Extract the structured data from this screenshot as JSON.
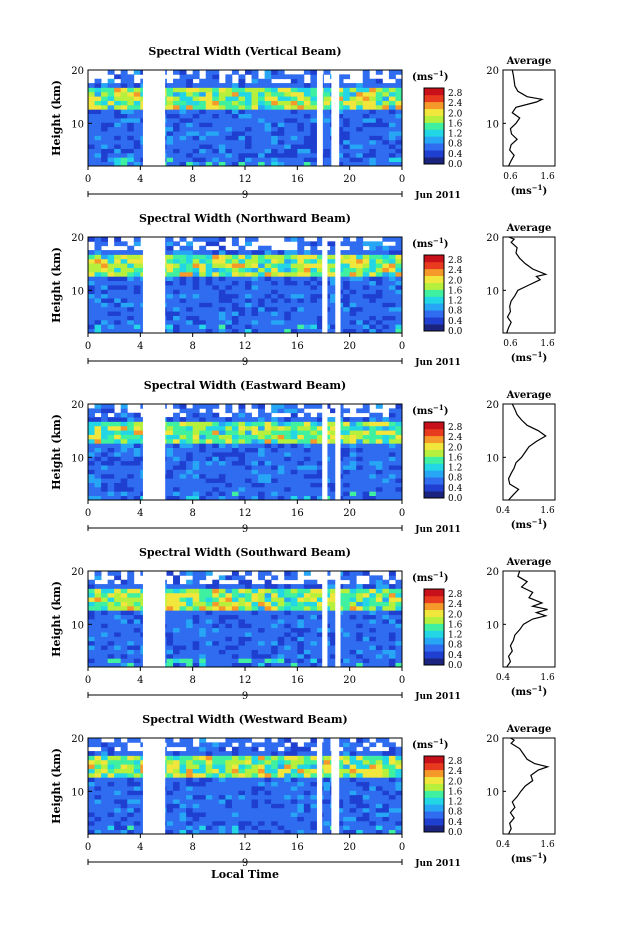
{
  "figure": {
    "x_axis_label": "Local Time",
    "date_label": "Jun 2011",
    "day_label": "9",
    "unit_label": "(ms",
    "unit_sup": "−1",
    "unit_close": ")",
    "average_title": "Average",
    "height_label": "Height (km)"
  },
  "chart_data": [
    {
      "type": "heatmap",
      "title": "Spectral Width (Vertical Beam)",
      "xlabel": "",
      "ylabel": "Height (km)",
      "x_ticks": [
        "0",
        "4",
        "8",
        "12",
        "16",
        "20",
        "0"
      ],
      "xlim": [
        0,
        24
      ],
      "ylim": [
        2,
        20
      ],
      "y_ticks": [
        "10",
        "20"
      ],
      "colorbar": {
        "label": "(ms⁻¹)",
        "ticks": [
          "0.0",
          "0.4",
          "0.8",
          "1.2",
          "1.6",
          "2.0",
          "2.4",
          "2.8"
        ],
        "range": [
          0,
          3.0
        ],
        "colors": [
          "#1a237e",
          "#1e3fd0",
          "#2f6cf0",
          "#26a6f5",
          "#22d6e6",
          "#3ff0a0",
          "#b6f03c",
          "#f0e63c",
          "#f59a2a",
          "#e83a1e",
          "#c8101a"
        ]
      },
      "gaps": [
        [
          4.2,
          5.9
        ],
        [
          17.5,
          17.95
        ],
        [
          18.6,
          19.2
        ]
      ],
      "average": {
        "title": "Average",
        "xlabel": "(ms⁻¹)",
        "x_ticks": [
          "0.6",
          "1.6"
        ],
        "xlim": [
          0.4,
          1.8
        ],
        "y_ticks": [
          "10",
          "20"
        ],
        "profile": [
          [
            0.55,
            2
          ],
          [
            0.62,
            3
          ],
          [
            0.7,
            4
          ],
          [
            0.58,
            5
          ],
          [
            0.62,
            6
          ],
          [
            0.78,
            7
          ],
          [
            0.63,
            8
          ],
          [
            0.6,
            9
          ],
          [
            0.75,
            10
          ],
          [
            0.85,
            11
          ],
          [
            0.65,
            12
          ],
          [
            0.75,
            13
          ],
          [
            1.3,
            14
          ],
          [
            1.45,
            14.5
          ],
          [
            1.05,
            15
          ],
          [
            0.8,
            16
          ],
          [
            0.72,
            17
          ],
          [
            0.7,
            18
          ],
          [
            0.68,
            19
          ],
          [
            0.65,
            20
          ]
        ]
      }
    },
    {
      "type": "heatmap",
      "title": "Spectral Width (Northward Beam)",
      "xlabel": "",
      "ylabel": "Height (km)",
      "x_ticks": [
        "0",
        "4",
        "8",
        "12",
        "16",
        "20",
        "0"
      ],
      "xlim": [
        0,
        24
      ],
      "ylim": [
        2,
        20
      ],
      "y_ticks": [
        "10",
        "20"
      ],
      "colorbar": {
        "label": "(ms⁻¹)",
        "ticks": [
          "0.0",
          "0.4",
          "0.8",
          "1.2",
          "1.6",
          "2.0",
          "2.4",
          "2.8"
        ],
        "range": [
          0,
          3.0
        ],
        "colors": [
          "#1a237e",
          "#1e3fd0",
          "#2f6cf0",
          "#26a6f5",
          "#22d6e6",
          "#3ff0a0",
          "#b6f03c",
          "#f0e63c",
          "#f59a2a",
          "#e83a1e",
          "#c8101a"
        ]
      },
      "gaps": [
        [
          4.2,
          5.9
        ],
        [
          17.9,
          18.3
        ],
        [
          18.9,
          19.3
        ]
      ],
      "average": {
        "title": "Average",
        "xlabel": "(ms⁻¹)",
        "x_ticks": [
          "0.6",
          "1.6"
        ],
        "xlim": [
          0.4,
          1.8
        ],
        "y_ticks": [
          "10",
          "20"
        ],
        "profile": [
          [
            0.5,
            2
          ],
          [
            0.55,
            3
          ],
          [
            0.62,
            4
          ],
          [
            0.52,
            5
          ],
          [
            0.6,
            6
          ],
          [
            0.58,
            7
          ],
          [
            0.62,
            8
          ],
          [
            0.72,
            9
          ],
          [
            0.8,
            10
          ],
          [
            1.1,
            11
          ],
          [
            1.4,
            12
          ],
          [
            1.3,
            12.6
          ],
          [
            1.55,
            13
          ],
          [
            1.2,
            14
          ],
          [
            1.0,
            15
          ],
          [
            0.85,
            16
          ],
          [
            0.75,
            17
          ],
          [
            0.78,
            18
          ],
          [
            0.62,
            19
          ],
          [
            0.7,
            19.6
          ],
          [
            0.55,
            20
          ]
        ]
      }
    },
    {
      "type": "heatmap",
      "title": "Spectral Width (Eastward Beam)",
      "xlabel": "",
      "ylabel": "Height (km)",
      "x_ticks": [
        "0",
        "4",
        "8",
        "12",
        "16",
        "20",
        "0"
      ],
      "xlim": [
        0,
        24
      ],
      "ylim": [
        2,
        20
      ],
      "y_ticks": [
        "10",
        "20"
      ],
      "colorbar": {
        "label": "(ms⁻¹)",
        "ticks": [
          "0.0",
          "0.4",
          "0.8",
          "1.2",
          "1.6",
          "2.0",
          "2.4",
          "2.8"
        ],
        "range": [
          0,
          3.0
        ],
        "colors": [
          "#1a237e",
          "#1e3fd0",
          "#2f6cf0",
          "#26a6f5",
          "#22d6e6",
          "#3ff0a0",
          "#b6f03c",
          "#f0e63c",
          "#f59a2a",
          "#e83a1e",
          "#c8101a"
        ]
      },
      "gaps": [
        [
          4.2,
          5.9
        ],
        [
          17.9,
          18.3
        ],
        [
          18.9,
          19.3
        ]
      ],
      "average": {
        "title": "Average",
        "xlabel": "(ms⁻¹)",
        "x_ticks": [
          "0.4",
          "1.6"
        ],
        "xlim": [
          0.4,
          1.8
        ],
        "y_ticks": [
          "10",
          "20"
        ],
        "profile": [
          [
            0.55,
            2
          ],
          [
            0.68,
            3
          ],
          [
            0.82,
            4
          ],
          [
            0.58,
            5
          ],
          [
            0.55,
            6
          ],
          [
            0.62,
            7
          ],
          [
            0.7,
            8
          ],
          [
            0.75,
            9
          ],
          [
            0.9,
            10
          ],
          [
            1.0,
            11
          ],
          [
            1.1,
            12
          ],
          [
            1.3,
            13
          ],
          [
            1.55,
            14
          ],
          [
            1.35,
            15
          ],
          [
            1.05,
            16
          ],
          [
            0.9,
            17
          ],
          [
            0.78,
            18
          ],
          [
            0.72,
            19
          ],
          [
            0.65,
            20
          ]
        ]
      }
    },
    {
      "type": "heatmap",
      "title": "Spectral Width (Southward Beam)",
      "xlabel": "",
      "ylabel": "Height (km)",
      "x_ticks": [
        "0",
        "4",
        "8",
        "12",
        "16",
        "20",
        "0"
      ],
      "xlim": [
        0,
        24
      ],
      "ylim": [
        2,
        20
      ],
      "y_ticks": [
        "10",
        "20"
      ],
      "colorbar": {
        "label": "(ms⁻¹)",
        "ticks": [
          "0.0",
          "0.4",
          "0.8",
          "1.2",
          "1.6",
          "2.0",
          "2.4",
          "2.8"
        ],
        "range": [
          0,
          3.0
        ],
        "colors": [
          "#1a237e",
          "#1e3fd0",
          "#2f6cf0",
          "#26a6f5",
          "#22d6e6",
          "#3ff0a0",
          "#b6f03c",
          "#f0e63c",
          "#f59a2a",
          "#e83a1e",
          "#c8101a"
        ]
      },
      "gaps": [
        [
          4.2,
          5.9
        ],
        [
          17.9,
          18.3
        ],
        [
          18.9,
          19.3
        ]
      ],
      "average": {
        "title": "Average",
        "xlabel": "(ms⁻¹)",
        "x_ticks": [
          "0.4",
          "1.6"
        ],
        "xlim": [
          0.4,
          1.8
        ],
        "y_ticks": [
          "10",
          "20"
        ],
        "profile": [
          [
            0.5,
            2
          ],
          [
            0.6,
            3
          ],
          [
            0.55,
            4
          ],
          [
            0.65,
            5
          ],
          [
            0.6,
            6
          ],
          [
            0.68,
            7
          ],
          [
            0.72,
            8
          ],
          [
            0.85,
            9
          ],
          [
            0.95,
            10
          ],
          [
            1.2,
            11
          ],
          [
            1.55,
            11.6
          ],
          [
            1.3,
            12.2
          ],
          [
            1.6,
            12.8
          ],
          [
            1.2,
            13.4
          ],
          [
            1.45,
            14
          ],
          [
            1.1,
            15
          ],
          [
            1.2,
            16
          ],
          [
            0.9,
            17
          ],
          [
            1.05,
            18
          ],
          [
            0.8,
            19
          ],
          [
            0.85,
            20
          ]
        ]
      }
    },
    {
      "type": "heatmap",
      "title": "Spectral Width (Westward Beam)",
      "xlabel": "Local Time",
      "ylabel": "Height (km)",
      "x_ticks": [
        "0",
        "4",
        "8",
        "12",
        "16",
        "20",
        "0"
      ],
      "xlim": [
        0,
        24
      ],
      "ylim": [
        2,
        20
      ],
      "y_ticks": [
        "10",
        "20"
      ],
      "colorbar": {
        "label": "(ms⁻¹)",
        "ticks": [
          "0.0",
          "0.4",
          "0.8",
          "1.2",
          "1.6",
          "2.0",
          "2.4",
          "2.8"
        ],
        "range": [
          0,
          3.0
        ],
        "colors": [
          "#1a237e",
          "#1e3fd0",
          "#2f6cf0",
          "#26a6f5",
          "#22d6e6",
          "#3ff0a0",
          "#b6f03c",
          "#f0e63c",
          "#f59a2a",
          "#e83a1e",
          "#c8101a"
        ]
      },
      "gaps": [
        [
          4.2,
          5.9
        ],
        [
          17.5,
          17.9
        ],
        [
          18.6,
          19.2
        ]
      ],
      "average": {
        "title": "Average",
        "xlabel": "(ms⁻¹)",
        "x_ticks": [
          "0.4",
          "1.6"
        ],
        "xlim": [
          0.4,
          1.8
        ],
        "y_ticks": [
          "10",
          "20"
        ],
        "profile": [
          [
            0.55,
            2
          ],
          [
            0.62,
            3
          ],
          [
            0.58,
            4
          ],
          [
            0.7,
            5
          ],
          [
            0.6,
            6
          ],
          [
            0.72,
            7
          ],
          [
            0.65,
            8
          ],
          [
            0.78,
            9
          ],
          [
            0.88,
            10
          ],
          [
            1.0,
            11
          ],
          [
            1.2,
            12
          ],
          [
            1.15,
            13
          ],
          [
            1.35,
            14
          ],
          [
            1.6,
            14.6
          ],
          [
            1.25,
            15.2
          ],
          [
            1.05,
            16
          ],
          [
            0.95,
            17
          ],
          [
            0.85,
            18
          ],
          [
            0.62,
            19
          ],
          [
            0.7,
            19.6
          ],
          [
            0.6,
            20
          ]
        ]
      }
    }
  ]
}
